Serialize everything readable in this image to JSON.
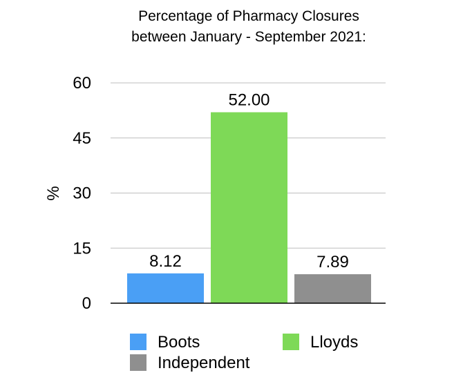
{
  "chart_data": {
    "type": "bar",
    "title_lines": [
      "Percentage of Pharmacy Closures",
      "between January - September 2021:"
    ],
    "xlabel": "",
    "ylabel": "%",
    "ylim": [
      0,
      60
    ],
    "yticks": [
      "0",
      "15",
      "30",
      "45",
      "60"
    ],
    "grid": true,
    "legend_position": "bottom",
    "categories": [
      "Boots",
      "Lloyds",
      "Independent"
    ],
    "values": [
      8.12,
      52.0,
      7.89
    ],
    "data_labels": [
      "8.12",
      "52.00",
      "7.89"
    ],
    "colors": [
      "#4a9ff5",
      "#7ed957",
      "#8f8f8f"
    ],
    "legend": [
      {
        "name": "Boots",
        "color": "#4a9ff5"
      },
      {
        "name": "Lloyds",
        "color": "#7ed957"
      },
      {
        "name": "Independent",
        "color": "#8f8f8f"
      }
    ]
  }
}
